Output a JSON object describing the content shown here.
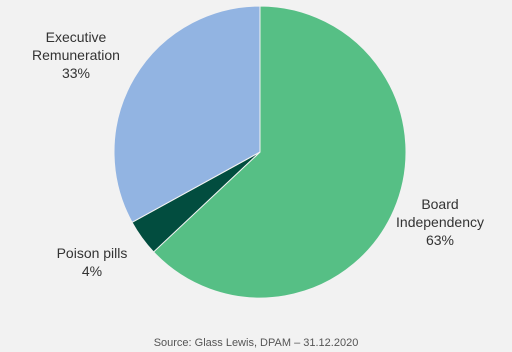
{
  "chart_data": {
    "type": "pie",
    "slices": [
      {
        "label_lines": [
          "Board",
          "Independency"
        ],
        "value": 63,
        "value_label": "63%",
        "color": "#56bf85"
      },
      {
        "label_lines": [
          "Poison pills"
        ],
        "value": 4,
        "value_label": "4%",
        "color": "#024d3f"
      },
      {
        "label_lines": [
          "Executive",
          "Remuneration"
        ],
        "value": 33,
        "value_label": "33%",
        "color": "#92b4e2"
      }
    ],
    "start_at": "12 o'clock",
    "direction": "clockwise",
    "legend": "none"
  },
  "source_text": "Source: Glass Lewis, DPAM – 31.12.2020"
}
